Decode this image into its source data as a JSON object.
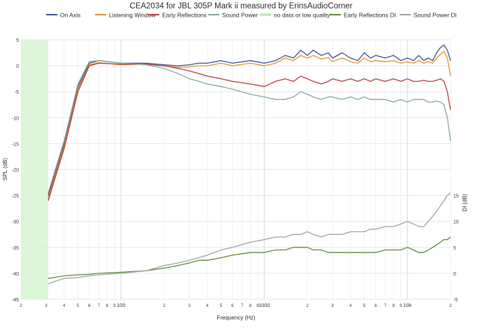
{
  "chart_data": {
    "type": "line",
    "title": "CEA2034 for JBL 305P Mark ii measured by ErinsAudioCorner",
    "xlabel": "Frequency (Hz)",
    "ylabel_left": "SPL (dB)",
    "ylabel_right": "DI (dB)",
    "x_scale": "log",
    "xlim": [
      20,
      20000
    ],
    "ylim_left": [
      -45,
      5
    ],
    "ylim_right": [
      -5,
      45
    ],
    "grid": true,
    "legend_position": "top",
    "x_tick_labels": [
      {
        "v": 20,
        "t": "2"
      },
      {
        "v": 30,
        "t": "3"
      },
      {
        "v": 40,
        "t": "4"
      },
      {
        "v": 50,
        "t": "5"
      },
      {
        "v": 60,
        "t": "6"
      },
      {
        "v": 70,
        "t": "7"
      },
      {
        "v": 80,
        "t": "8"
      },
      {
        "v": 90,
        "t": "9"
      },
      {
        "v": 100,
        "t": "100"
      },
      {
        "v": 200,
        "t": "2"
      },
      {
        "v": 300,
        "t": "3"
      },
      {
        "v": 400,
        "t": "4"
      },
      {
        "v": 500,
        "t": "5"
      },
      {
        "v": 600,
        "t": "6"
      },
      {
        "v": 700,
        "t": "7"
      },
      {
        "v": 800,
        "t": "8"
      },
      {
        "v": 900,
        "t": "9"
      },
      {
        "v": 1000,
        "t": "1000"
      },
      {
        "v": 2000,
        "t": "2"
      },
      {
        "v": 3000,
        "t": "3"
      },
      {
        "v": 4000,
        "t": "4"
      },
      {
        "v": 5000,
        "t": "5"
      },
      {
        "v": 6000,
        "t": "6"
      },
      {
        "v": 7000,
        "t": "7"
      },
      {
        "v": 8000,
        "t": "8"
      },
      {
        "v": 9000,
        "t": "9"
      },
      {
        "v": 10000,
        "t": "10k"
      },
      {
        "v": 20000,
        "t": "2"
      }
    ],
    "y_left_ticks": [
      "5",
      "0",
      "-5",
      "-10",
      "-15",
      "-20",
      "-25",
      "-30",
      "-35",
      "-40",
      "-45"
    ],
    "y_right_ticks": [
      "15",
      "10",
      "5",
      "0",
      "-5"
    ],
    "shaded_region": {
      "name": "no data or low quality",
      "x": [
        20,
        31
      ],
      "color": "#dcf7d8"
    },
    "series": [
      {
        "name": "On Axis",
        "axis": "left",
        "color": "#3a4f8c",
        "x": [
          31,
          40,
          50,
          60,
          70,
          100,
          150,
          200,
          250,
          300,
          350,
          400,
          500,
          600,
          800,
          1000,
          1200,
          1400,
          1600,
          1800,
          2000,
          2200,
          2500,
          2800,
          3000,
          3500,
          4000,
          4500,
          5000,
          5500,
          6000,
          7000,
          8000,
          9000,
          10000,
          11000,
          12000,
          13000,
          14000,
          15000,
          16000,
          17000,
          18000,
          19000,
          20000
        ],
        "y": [
          -25,
          -15,
          -4,
          0.5,
          1,
          0.5,
          0.5,
          0.2,
          0,
          0.2,
          0.5,
          0.5,
          1,
          0.5,
          1,
          0.5,
          1,
          2,
          1.5,
          3,
          2,
          3,
          2,
          2.5,
          1.5,
          2.5,
          1.5,
          1,
          2.5,
          1.5,
          2,
          1.5,
          2,
          1,
          1.5,
          1,
          2,
          1,
          1.5,
          1,
          2.5,
          3.5,
          4,
          3,
          1
        ]
      },
      {
        "name": "Listening Window",
        "axis": "left",
        "color": "#e09030",
        "x": [
          31,
          40,
          50,
          60,
          70,
          100,
          150,
          200,
          250,
          300,
          350,
          400,
          500,
          600,
          800,
          1000,
          1200,
          1400,
          1600,
          1800,
          2000,
          2200,
          2500,
          2800,
          3000,
          3500,
          4000,
          4500,
          5000,
          5500,
          6000,
          7000,
          8000,
          9000,
          10000,
          11000,
          12000,
          13000,
          14000,
          15000,
          16000,
          17000,
          18000,
          19000,
          20000
        ],
        "y": [
          -25.5,
          -15.5,
          -4.5,
          0.2,
          0.6,
          0.2,
          0.3,
          0,
          -0.3,
          -0.2,
          0,
          0,
          0.5,
          0,
          0.5,
          0,
          0.5,
          1.5,
          1,
          2,
          1.5,
          2,
          1.3,
          1.6,
          0.8,
          1.5,
          0.8,
          0.5,
          1.5,
          0.8,
          1,
          0.8,
          1,
          0.5,
          0.8,
          0.5,
          1,
          0.5,
          0.8,
          0.5,
          1.5,
          2.2,
          2.8,
          1.5,
          -2
        ]
      },
      {
        "name": "Early Reflections",
        "axis": "left",
        "color": "#b03a3a",
        "x": [
          31,
          40,
          50,
          60,
          70,
          100,
          150,
          200,
          250,
          300,
          350,
          400,
          500,
          600,
          800,
          1000,
          1200,
          1400,
          1600,
          1800,
          2000,
          2200,
          2500,
          2800,
          3000,
          3500,
          4000,
          4500,
          5000,
          5500,
          6000,
          7000,
          8000,
          9000,
          10000,
          11000,
          12000,
          13000,
          14000,
          15000,
          16000,
          17000,
          18000,
          19000,
          20000
        ],
        "y": [
          -26,
          -16,
          -5,
          0,
          0.5,
          0.3,
          0.3,
          0,
          -0.5,
          -1,
          -1.5,
          -2,
          -2.5,
          -3,
          -3.5,
          -4,
          -3,
          -2.5,
          -3,
          -2,
          -2.5,
          -3,
          -3.5,
          -3,
          -2.5,
          -3,
          -2.5,
          -3,
          -2.5,
          -3,
          -2.5,
          -3,
          -2.5,
          -3,
          -2.5,
          -3,
          -3,
          -2.8,
          -3,
          -3,
          -2.8,
          -2.5,
          -3,
          -5,
          -8.5
        ]
      },
      {
        "name": "Sound Power",
        "axis": "left",
        "color": "#7fa89b",
        "x": [
          31,
          40,
          50,
          60,
          70,
          100,
          150,
          200,
          250,
          300,
          350,
          400,
          500,
          600,
          800,
          1000,
          1200,
          1400,
          1600,
          1800,
          2000,
          2200,
          2500,
          2800,
          3000,
          3500,
          4000,
          4500,
          5000,
          5500,
          6000,
          7000,
          8000,
          9000,
          10000,
          11000,
          12000,
          13000,
          14000,
          15000,
          16000,
          17000,
          18000,
          19000,
          20000
        ],
        "y": [
          -24.5,
          -14.5,
          -3.5,
          0.8,
          1,
          0.5,
          0.2,
          -0.5,
          -1.5,
          -2.5,
          -3,
          -3.5,
          -4,
          -4.5,
          -5.5,
          -6,
          -6.5,
          -6.5,
          -6,
          -5,
          -5.5,
          -6,
          -6.5,
          -6,
          -6,
          -6.5,
          -6,
          -6.5,
          -6,
          -6.5,
          -6.5,
          -6.5,
          -7,
          -6.5,
          -7,
          -6.5,
          -6.5,
          -6.5,
          -7,
          -7,
          -6.8,
          -7,
          -7.5,
          -10,
          -14.5
        ]
      },
      {
        "name": "Early Reflections DI",
        "axis": "right",
        "color": "#5a8a35",
        "x": [
          31,
          40,
          50,
          60,
          70,
          100,
          150,
          200,
          250,
          300,
          350,
          400,
          500,
          600,
          800,
          1000,
          1200,
          1400,
          1600,
          1800,
          2000,
          2200,
          2500,
          2800,
          3000,
          3500,
          4000,
          4500,
          5000,
          5500,
          6000,
          7000,
          8000,
          9000,
          10000,
          11000,
          12000,
          13000,
          14000,
          15000,
          16000,
          17000,
          18000,
          19000,
          20000
        ],
        "y": [
          -1,
          -0.5,
          -0.3,
          -0.2,
          0,
          0.2,
          0.5,
          1,
          1.5,
          2,
          2.5,
          2.5,
          3,
          3.5,
          4,
          4,
          4.5,
          4.5,
          5,
          5,
          5,
          4.5,
          4.5,
          4,
          4,
          4,
          4,
          4,
          4,
          4,
          4,
          4.5,
          4.5,
          4.5,
          5,
          4.5,
          4,
          4,
          4.5,
          5,
          5.5,
          6,
          6.5,
          6.5,
          7
        ]
      },
      {
        "name": "Sound Power DI",
        "axis": "right",
        "color": "#a0a0a0",
        "x": [
          31,
          40,
          50,
          60,
          70,
          100,
          150,
          200,
          250,
          300,
          350,
          400,
          500,
          600,
          800,
          1000,
          1200,
          1400,
          1600,
          1800,
          2000,
          2200,
          2500,
          2800,
          3000,
          3500,
          4000,
          4500,
          5000,
          5500,
          6000,
          7000,
          8000,
          9000,
          10000,
          11000,
          12000,
          13000,
          14000,
          15000,
          16000,
          17000,
          18000,
          19000,
          20000
        ],
        "y": [
          -2,
          -1,
          -0.8,
          -0.5,
          -0.3,
          0,
          0.5,
          1.5,
          2,
          2.5,
          3,
          3.5,
          4.5,
          5,
          6,
          6.5,
          7,
          7,
          7.5,
          7.5,
          8,
          7.5,
          7,
          7.5,
          7.5,
          7.5,
          8,
          8,
          8,
          8.5,
          8.5,
          9,
          9,
          9.5,
          10,
          9.5,
          9,
          9,
          10,
          11,
          12,
          13,
          14,
          15,
          15.5
        ]
      }
    ]
  }
}
